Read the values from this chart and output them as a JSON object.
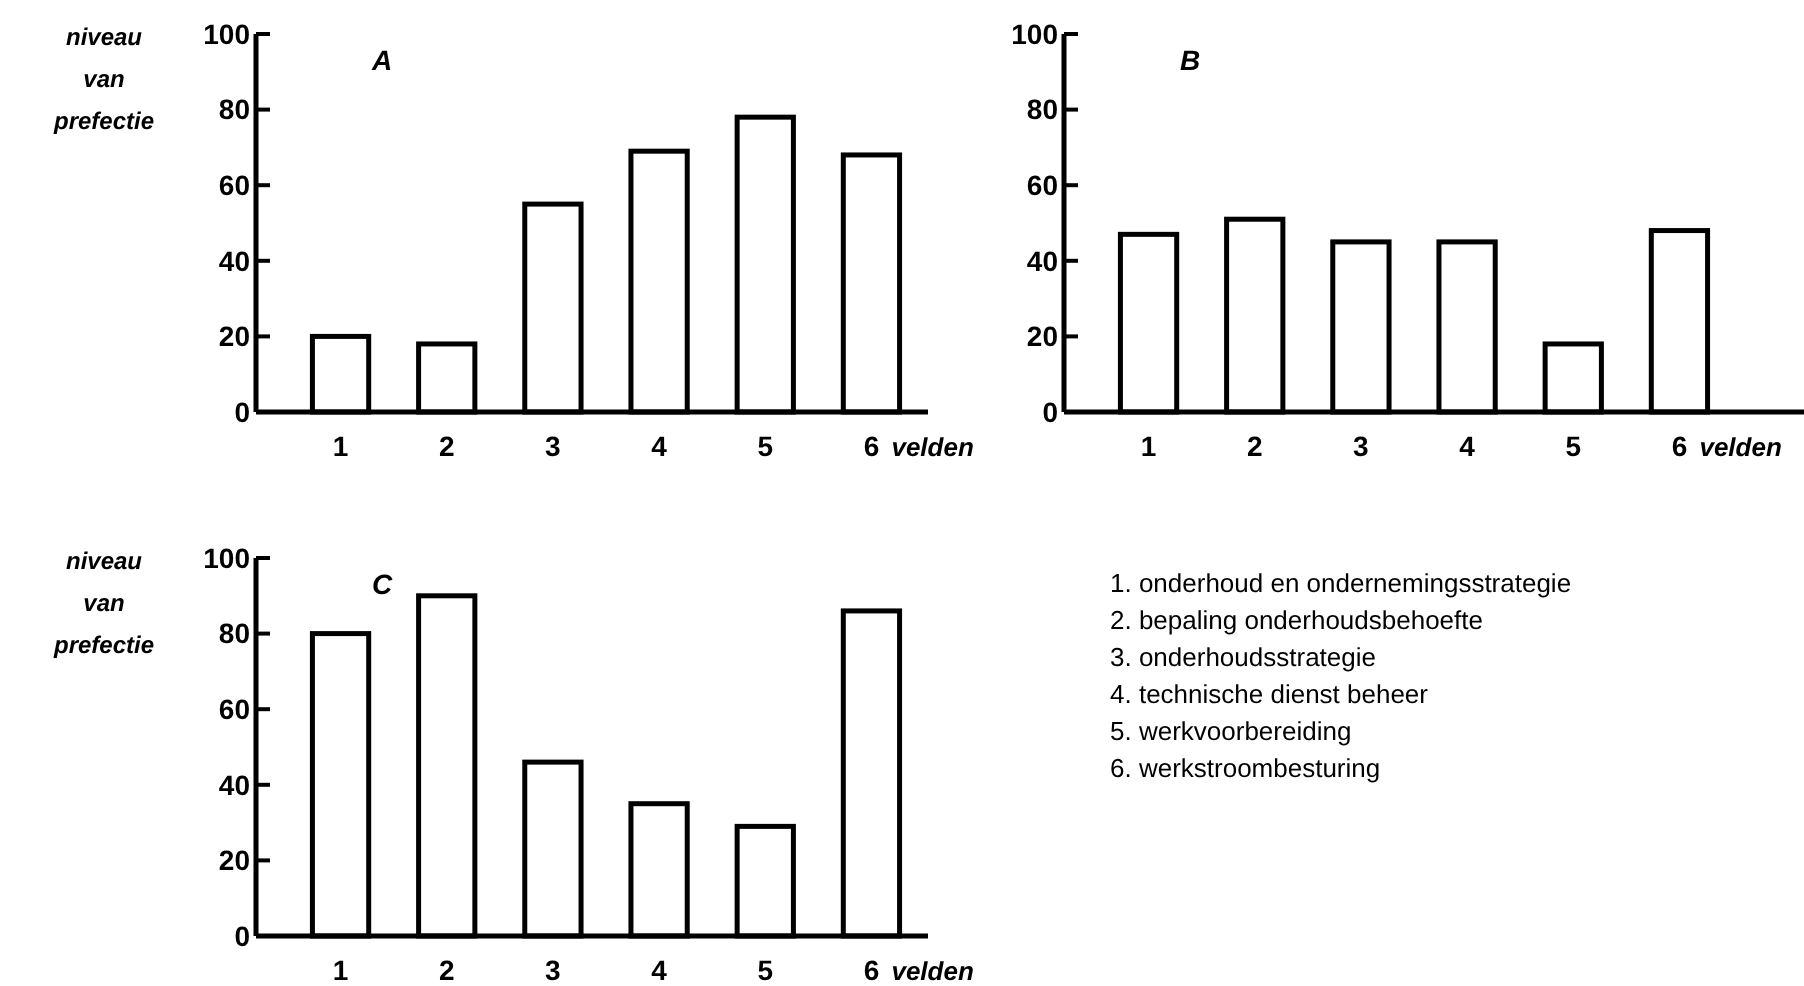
{
  "chart_data": [
    {
      "type": "bar",
      "title": "A",
      "ylabel": "niveau van prefectie",
      "xlabel": "velden",
      "categories": [
        "1",
        "2",
        "3",
        "4",
        "5",
        "6"
      ],
      "values": [
        20,
        18,
        55,
        69,
        78,
        68
      ],
      "color": "#ffffff",
      "ylim": [
        0,
        100
      ],
      "yticks": [
        0,
        20,
        40,
        60,
        80,
        100
      ],
      "grid": false
    },
    {
      "type": "bar",
      "title": "B",
      "xlabel": "velden",
      "categories": [
        "1",
        "2",
        "3",
        "4",
        "5",
        "6"
      ],
      "values": [
        47,
        51,
        45,
        45,
        18,
        48
      ],
      "color": "#ffffff",
      "ylim": [
        0,
        100
      ],
      "yticks": [
        0,
        20,
        40,
        60,
        80,
        100
      ],
      "grid": false
    },
    {
      "type": "bar",
      "title": "C",
      "ylabel": "niveau van prefectie",
      "xlabel": "velden",
      "categories": [
        "1",
        "2",
        "3",
        "4",
        "5",
        "6"
      ],
      "values": [
        80,
        90,
        46,
        35,
        29,
        86
      ],
      "color": "#ffffff",
      "ylim": [
        0,
        100
      ],
      "yticks": [
        0,
        20,
        40,
        60,
        80,
        100
      ],
      "grid": false
    },
    {
      "type": "other",
      "annotations": [
        "1. onderhoud en ondernemingsstrategie",
        "2. bepaling onderhoudsbehoefte",
        "3. onderhoudsstrategie",
        "4. technische dienst beheer",
        "5. werkvoorbereiding",
        "6. werkstroombesturing"
      ]
    }
  ]
}
